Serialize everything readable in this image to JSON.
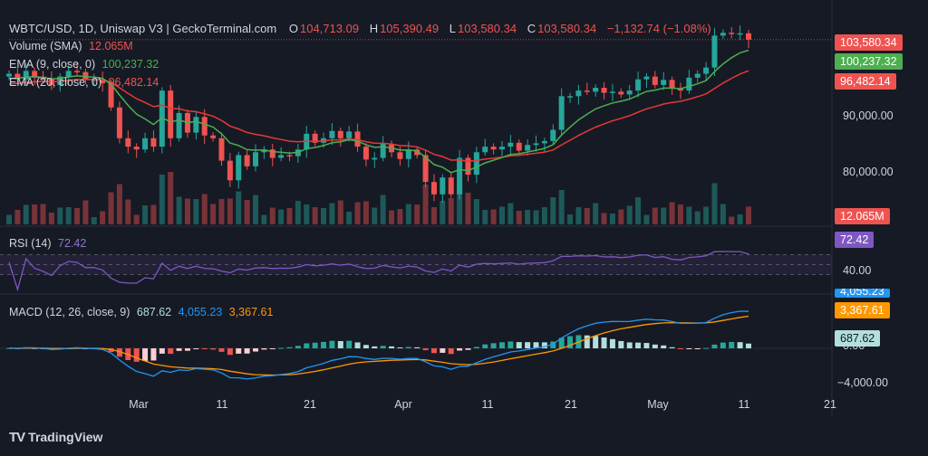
{
  "header": {
    "symbol": "WBTC/USD, 1D, Uniswap V3 | GeckoTerminal.com",
    "o_label": "O",
    "o_val": "104,713.09",
    "h_label": "H",
    "h_val": "105,390.49",
    "l_label": "L",
    "l_val": "103,580.34",
    "c_label": "C",
    "c_val": "103,580.34",
    "change": "−1,132.74 (−1.08%)"
  },
  "legend": {
    "volume_label": "Volume (SMA)",
    "volume_val": "12.065M",
    "ema9_label": "EMA (9, close, 0)",
    "ema9_val": "100,237.32",
    "ema20_label": "EMA (20, close, 0)",
    "ema20_val": "96,482.14",
    "rsi_label": "RSI (14)",
    "rsi_val": "72.42",
    "macd_label": "MACD (12, 26, close, 9)",
    "macd_hist": "687.62",
    "macd_line": "4,055.23",
    "macd_signal": "3,367.61"
  },
  "price_axis": {
    "ticks": [
      "90,000.00",
      "80,000.00"
    ],
    "last": "103,580.34",
    "ema9": "100,237.32",
    "ema20": "96,482.14",
    "volume": "12.065M"
  },
  "rsi_axis": {
    "ticks": [
      "40.00"
    ],
    "last": "72.42"
  },
  "macd_axis": {
    "ticks": [
      "0.00",
      "−4,000.00"
    ],
    "line": "4,055.23",
    "signal": "3,367.61",
    "hist": "687.62"
  },
  "x_axis": {
    "ticks": [
      "Mar",
      "11",
      "21",
      "Apr",
      "11",
      "21",
      "May",
      "11",
      "21"
    ]
  },
  "branding": "TradingView",
  "colors": {
    "up": "#26a69a",
    "down": "#ef5350",
    "ema9": "#4caf50",
    "ema20": "#e53935",
    "rsi": "#7e57c2",
    "macd": "#2196f3",
    "signal": "#ff9800"
  },
  "chart_data": {
    "type": "candlestick",
    "start": "2025-02-12",
    "days": 88,
    "closes": [
      97500,
      96500,
      98000,
      97000,
      96500,
      95500,
      97000,
      98000,
      97800,
      96500,
      96500,
      95800,
      91500,
      86000,
      84500,
      84000,
      86000,
      84500,
      94500,
      86000,
      90500,
      87000,
      89800,
      86500,
      86000,
      82000,
      78500,
      83000,
      81000,
      83500,
      84000,
      82500,
      83000,
      82800,
      84000,
      86800,
      85200,
      86000,
      87300,
      86000,
      87200,
      84500,
      82200,
      82500,
      85000,
      83500,
      82300,
      84000,
      83000,
      78200,
      76000,
      79000,
      76000,
      82500,
      79500,
      83500,
      84500,
      84000,
      84500,
      85200,
      83800,
      84800,
      85100,
      85500,
      87500,
      93500,
      93500,
      94500,
      94300,
      95000,
      94100,
      94300,
      93800,
      94500,
      96500,
      97000,
      95500,
      96400,
      94900,
      94500,
      96800,
      97500,
      98600,
      104300,
      104800,
      104700,
      104713,
      103580
    ],
    "volume_sma_last": "12.065M",
    "ema9_last": 100237.32,
    "ema20_last": 96482.14,
    "rsi_last": 72.42,
    "macd_last": 4055.23,
    "signal_last": 3367.61,
    "hist_last": 687.62
  }
}
